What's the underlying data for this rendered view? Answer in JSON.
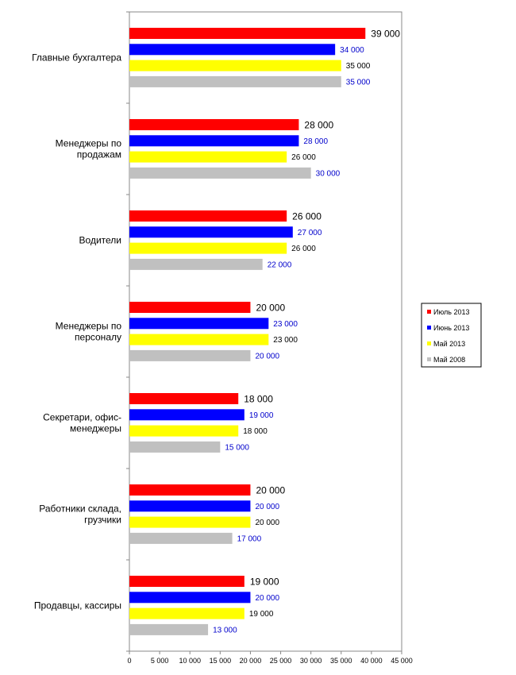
{
  "chart_data": {
    "type": "bar",
    "orientation": "horizontal",
    "categories": [
      [
        "Главные бухгалтера"
      ],
      [
        "Менеджеры по",
        "продажам"
      ],
      [
        "Водители"
      ],
      [
        "Менеджеры по",
        "персоналу"
      ],
      [
        "Секретари, офис-",
        "менеджеры"
      ],
      [
        "Работники склада,",
        "грузчики"
      ],
      [
        "Продавцы, кассиры"
      ]
    ],
    "series": [
      {
        "name": "Июль 2013",
        "color": "#ff0000",
        "values": [
          39000,
          28000,
          26000,
          20000,
          18000,
          20000,
          19000
        ],
        "labels": [
          "39 000",
          "28 000",
          "26 000",
          "20 000",
          "18 000",
          "20 000",
          "19 000"
        ],
        "label_color": "#000000",
        "label_style": "large"
      },
      {
        "name": "Июнь 2013",
        "color": "#0000ff",
        "values": [
          34000,
          28000,
          27000,
          23000,
          19000,
          20000,
          20000
        ],
        "labels": [
          "34 000",
          "28 000",
          "27 000",
          "23 000",
          "19 000",
          "20 000",
          "20 000"
        ],
        "label_color": "#0000cc",
        "label_style": "small"
      },
      {
        "name": "Май 2013",
        "color": "#ffff00",
        "values": [
          35000,
          26000,
          26000,
          23000,
          18000,
          20000,
          19000
        ],
        "labels": [
          "35 000",
          "26 000",
          "26 000",
          "23 000",
          "18 000",
          "20 000",
          "19 000"
        ],
        "label_color": "#000000",
        "label_style": "small"
      },
      {
        "name": "Май 2008",
        "color": "#c0c0c0",
        "values": [
          35000,
          30000,
          22000,
          20000,
          15000,
          17000,
          13000
        ],
        "labels": [
          "35 000",
          "30 000",
          "22 000",
          "20 000",
          "15 000",
          "17 000",
          "13 000"
        ],
        "label_color": "#0000cc",
        "label_style": "small"
      }
    ],
    "xlim": [
      0,
      45000
    ],
    "xticks": [
      0,
      5000,
      10000,
      15000,
      20000,
      25000,
      30000,
      35000,
      40000,
      45000
    ],
    "xtick_labels": [
      "0",
      "5 000",
      "10 000",
      "15 000",
      "20 000",
      "25 000",
      "30 000",
      "35 000",
      "40 000",
      "45 000"
    ],
    "grid": false,
    "legend_position": "right"
  }
}
